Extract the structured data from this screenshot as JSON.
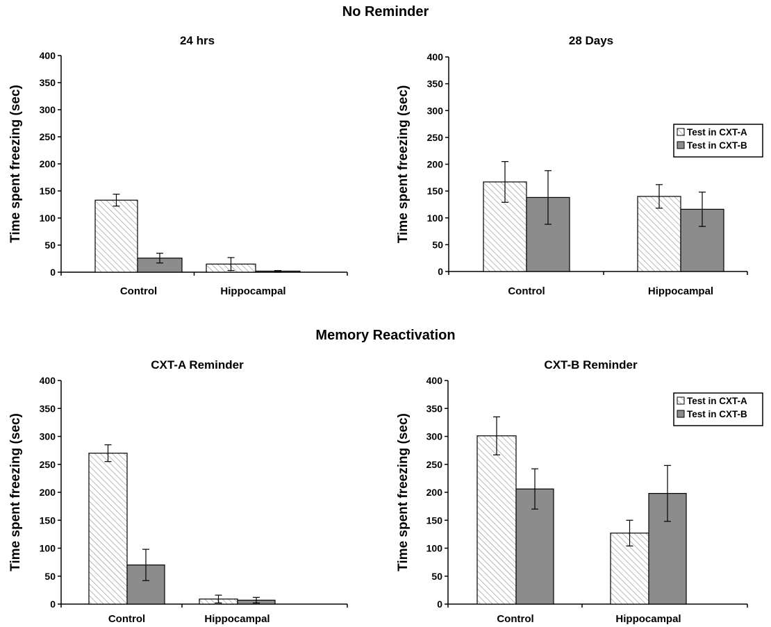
{
  "top_title": "No Reminder",
  "bottom_title": "Memory Reactivation",
  "colors": {
    "hatched_fill": "#ffffff",
    "hatch_line": "#8a8a8a",
    "solid_fill": "#8c8c8c",
    "axis": "#000000"
  },
  "chart_data": [
    {
      "type": "bar",
      "title": "24 hrs",
      "ylabel": "Time spent freezing (sec)",
      "xlabel": "",
      "ylim": [
        0,
        400
      ],
      "yticks": [
        0,
        50,
        100,
        150,
        200,
        250,
        300,
        350,
        400
      ],
      "categories": [
        "Control",
        "Hippocampal"
      ],
      "series": [
        {
          "pattern": "hatched",
          "values": [
            133,
            15
          ],
          "errors": [
            11,
            12
          ]
        },
        {
          "pattern": "solid",
          "values": [
            26,
            2
          ],
          "errors": [
            9,
            1
          ]
        }
      ],
      "legend": null
    },
    {
      "type": "bar",
      "title": "28 Days",
      "ylabel": "Time spent freezing (sec)",
      "xlabel": "",
      "ylim": [
        0,
        400
      ],
      "yticks": [
        0,
        50,
        100,
        150,
        200,
        250,
        300,
        350,
        400
      ],
      "categories": [
        "Control",
        "Hippocampal"
      ],
      "series": [
        {
          "name": "Test in CXT-A",
          "pattern": "hatched",
          "values": [
            167,
            140
          ],
          "errors": [
            38,
            22
          ]
        },
        {
          "name": "Test in CXT-B",
          "pattern": "solid",
          "values": [
            138,
            116
          ],
          "errors": [
            50,
            32
          ]
        }
      ],
      "legend": "top-right"
    },
    {
      "type": "bar",
      "title": "CXT-A Reminder",
      "ylabel": "Time spent freezing (sec)",
      "xlabel": "",
      "ylim": [
        0,
        400
      ],
      "yticks": [
        0,
        50,
        100,
        150,
        200,
        250,
        300,
        350,
        400
      ],
      "categories": [
        "Control",
        "Hippocampal"
      ],
      "series": [
        {
          "pattern": "hatched",
          "values": [
            270,
            9
          ],
          "errors": [
            15,
            7
          ]
        },
        {
          "pattern": "solid",
          "values": [
            70,
            7
          ],
          "errors": [
            28,
            5
          ]
        }
      ],
      "legend": null
    },
    {
      "type": "bar",
      "title": "CXT-B Reminder",
      "ylabel": "Time spent freezing (sec)",
      "xlabel": "",
      "ylim": [
        0,
        400
      ],
      "yticks": [
        0,
        50,
        100,
        150,
        200,
        250,
        300,
        350,
        400
      ],
      "categories": [
        "Control",
        "Hippocampal"
      ],
      "series": [
        {
          "name": "Test in CXT-A",
          "pattern": "hatched",
          "values": [
            301,
            127
          ],
          "errors": [
            34,
            23
          ]
        },
        {
          "name": "Test in CXT-B",
          "pattern": "solid",
          "values": [
            206,
            198
          ],
          "errors": [
            36,
            50
          ]
        }
      ],
      "legend": "top-right"
    }
  ]
}
